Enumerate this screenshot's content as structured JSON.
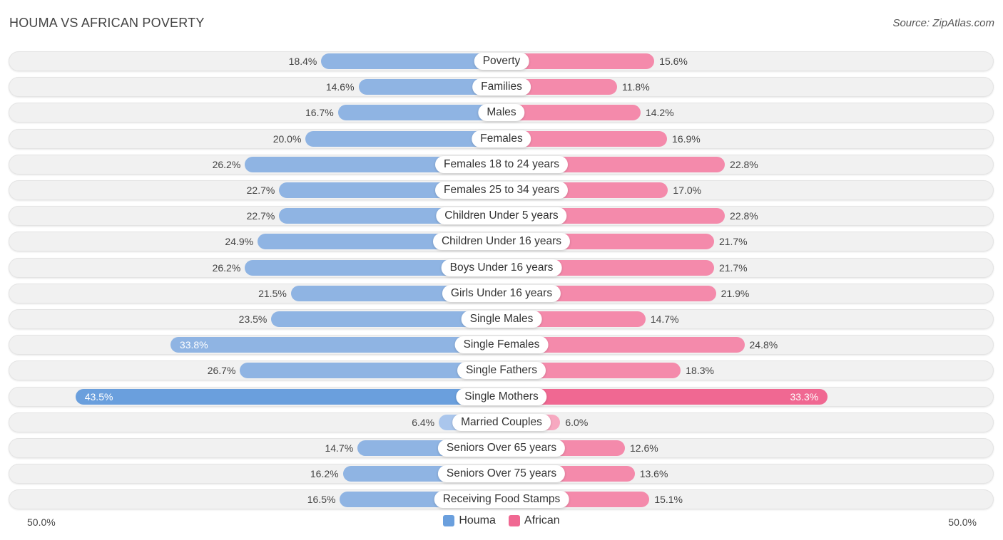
{
  "title": "HOUMA VS AFRICAN POVERTY",
  "source": "Source: ZipAtlas.com",
  "chart_data": {
    "type": "bar",
    "orientation": "diverging-horizontal",
    "title": "HOUMA VS AFRICAN POVERTY",
    "categories": [
      "Poverty",
      "Families",
      "Males",
      "Females",
      "Females 18 to 24 years",
      "Females 25 to 34 years",
      "Children Under 5 years",
      "Children Under 16 years",
      "Boys Under 16 years",
      "Girls Under 16 years",
      "Single Males",
      "Single Females",
      "Single Fathers",
      "Single Mothers",
      "Married Couples",
      "Seniors Over 65 years",
      "Seniors Over 75 years",
      "Receiving Food Stamps"
    ],
    "series": [
      {
        "name": "Houma",
        "color": "#6a9fdd",
        "values": [
          18.4,
          14.6,
          16.7,
          20.0,
          26.2,
          22.7,
          22.7,
          24.9,
          26.2,
          21.5,
          23.5,
          33.8,
          26.7,
          43.5,
          6.4,
          14.7,
          16.2,
          16.5
        ],
        "labels": [
          "18.4%",
          "14.6%",
          "16.7%",
          "20.0%",
          "26.2%",
          "22.7%",
          "22.7%",
          "24.9%",
          "26.2%",
          "21.5%",
          "23.5%",
          "33.8%",
          "26.7%",
          "43.5%",
          "6.4%",
          "14.7%",
          "16.2%",
          "16.5%"
        ]
      },
      {
        "name": "African",
        "color": "#f06892",
        "values": [
          15.6,
          11.8,
          14.2,
          16.9,
          22.8,
          17.0,
          22.8,
          21.7,
          21.7,
          21.9,
          14.7,
          24.8,
          18.3,
          33.3,
          6.0,
          12.6,
          13.6,
          15.1
        ],
        "labels": [
          "15.6%",
          "11.8%",
          "14.2%",
          "16.9%",
          "22.8%",
          "17.0%",
          "22.8%",
          "21.7%",
          "21.7%",
          "21.9%",
          "14.7%",
          "24.8%",
          "18.3%",
          "33.3%",
          "6.0%",
          "12.6%",
          "13.6%",
          "15.1%"
        ]
      }
    ],
    "xlim": [
      -50,
      50
    ],
    "axis_labels": {
      "left": "50.0%",
      "right": "50.0%"
    },
    "legend": [
      "Houma",
      "African"
    ],
    "legend_position": "bottom-center"
  }
}
